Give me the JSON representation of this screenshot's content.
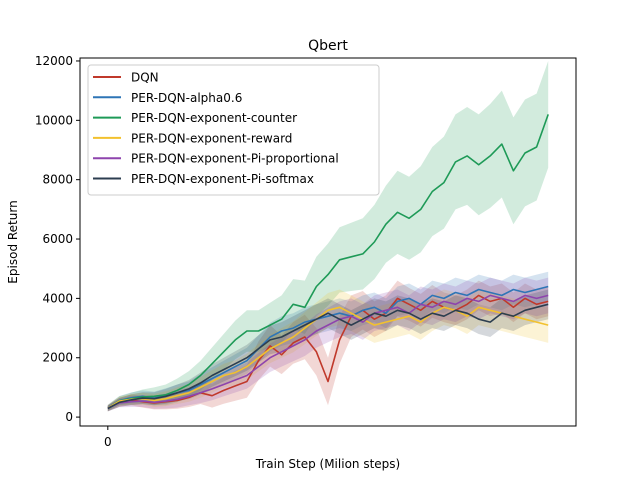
{
  "chart_data": {
    "type": "line",
    "title": "Qbert",
    "xlabel": "Train Step (Milion steps)",
    "ylabel": "Episod Return",
    "xlim": [
      -9.6,
      161.6
    ],
    "ylim": [
      -300,
      12100
    ],
    "x_ticks": [
      {
        "value": 0,
        "label": "0"
      }
    ],
    "y_ticks": [
      {
        "value": 0,
        "label": "0"
      },
      {
        "value": 2000,
        "label": "2000"
      },
      {
        "value": 4000,
        "label": "4000"
      },
      {
        "value": 6000,
        "label": "6000"
      },
      {
        "value": 8000,
        "label": "8000"
      },
      {
        "value": 10000,
        "label": "10000"
      },
      {
        "value": 12000,
        "label": "12000"
      }
    ],
    "grid": false,
    "legend_position": "top-left",
    "x": [
      0,
      4,
      8,
      12,
      16,
      20,
      24,
      28,
      32,
      36,
      40,
      44,
      48,
      52,
      56,
      60,
      64,
      68,
      72,
      76,
      80,
      84,
      88,
      92,
      96,
      100,
      104,
      108,
      112,
      116,
      120,
      124,
      128,
      132,
      136,
      140,
      144,
      148,
      152
    ],
    "series": [
      {
        "name": "DQN",
        "color": "#c0392b",
        "values": [
          300,
          500,
          580,
          520,
          480,
          520,
          560,
          660,
          820,
          720,
          900,
          1050,
          1200,
          1900,
          2400,
          2100,
          2500,
          2700,
          2200,
          1200,
          2600,
          3400,
          3600,
          3300,
          3500,
          4000,
          3800,
          3600,
          3900,
          3700,
          3600,
          3800,
          4100,
          3900,
          4000,
          3700,
          4000,
          3800,
          3900
        ],
        "spread": [
          100,
          150,
          180,
          200,
          220,
          260,
          280,
          320,
          380,
          400,
          450,
          500,
          550,
          650,
          700,
          650,
          700,
          750,
          800,
          800,
          800,
          700,
          650,
          600,
          600,
          600,
          550,
          550,
          550,
          500,
          500,
          500,
          500,
          500,
          500,
          500,
          500,
          500,
          500
        ]
      },
      {
        "name": "PER-DQN-alpha0.6",
        "color": "#2e75b6",
        "values": [
          320,
          560,
          650,
          700,
          640,
          720,
          820,
          900,
          1100,
          1300,
          1500,
          1700,
          1900,
          2300,
          2700,
          2900,
          3000,
          3200,
          3300,
          3400,
          3500,
          3400,
          3600,
          3700,
          3500,
          3900,
          4000,
          3800,
          4100,
          4000,
          4200,
          4100,
          4300,
          4200,
          4100,
          4300,
          4200,
          4300,
          4400
        ],
        "spread": [
          100,
          150,
          180,
          200,
          220,
          250,
          280,
          300,
          350,
          380,
          400,
          420,
          440,
          460,
          480,
          500,
          500,
          500,
          500,
          500,
          500,
          500,
          500,
          500,
          500,
          500,
          500,
          500,
          500,
          500,
          500,
          500,
          500,
          500,
          500,
          500,
          500,
          500,
          500
        ]
      },
      {
        "name": "PER-DQN-exponent-counter",
        "color": "#1e9a57",
        "values": [
          300,
          550,
          620,
          680,
          700,
          750,
          900,
          1100,
          1400,
          1800,
          2200,
          2600,
          2900,
          2900,
          3100,
          3300,
          3800,
          3700,
          4400,
          4800,
          5300,
          5400,
          5500,
          5900,
          6500,
          6900,
          6700,
          7000,
          7600,
          7900,
          8600,
          8800,
          8500,
          8800,
          9200,
          8300,
          8900,
          9100,
          10200
        ],
        "spread": [
          100,
          150,
          200,
          250,
          300,
          350,
          400,
          450,
          500,
          550,
          600,
          650,
          700,
          700,
          750,
          800,
          850,
          900,
          1000,
          1050,
          1100,
          1150,
          1200,
          1250,
          1300,
          1400,
          1400,
          1450,
          1500,
          1550,
          1600,
          1650,
          1700,
          1750,
          1800,
          1800,
          1800,
          1800,
          1800
        ]
      },
      {
        "name": "PER-DQN-exponent-reward",
        "color": "#f2c12e",
        "values": [
          310,
          540,
          600,
          620,
          560,
          620,
          720,
          820,
          1000,
          1200,
          1400,
          1500,
          1700,
          2000,
          2300,
          2500,
          2700,
          3000,
          3300,
          3600,
          3700,
          3500,
          3300,
          3100,
          3200,
          3300,
          3400,
          3200,
          3500,
          3700,
          3600,
          3400,
          3700,
          3600,
          3500,
          3400,
          3300,
          3200,
          3100
        ],
        "spread": [
          100,
          150,
          180,
          200,
          220,
          250,
          280,
          300,
          350,
          380,
          400,
          420,
          440,
          460,
          480,
          500,
          520,
          540,
          560,
          580,
          600,
          600,
          600,
          600,
          600,
          600,
          600,
          600,
          600,
          600,
          600,
          600,
          600,
          600,
          600,
          600,
          600,
          600,
          600
        ]
      },
      {
        "name": "PER-DQN-exponent-Pi-proportional",
        "color": "#8e44ad",
        "values": [
          300,
          480,
          520,
          540,
          500,
          540,
          600,
          700,
          820,
          950,
          1100,
          1250,
          1400,
          1700,
          2000,
          2200,
          2400,
          2600,
          2900,
          3100,
          3300,
          3400,
          3200,
          3500,
          3600,
          3700,
          3500,
          3800,
          3700,
          3900,
          3800,
          4000,
          3900,
          4100,
          4000,
          3900,
          4100,
          4000,
          4100
        ],
        "spread": [
          100,
          150,
          180,
          200,
          220,
          250,
          280,
          300,
          350,
          380,
          400,
          420,
          440,
          460,
          480,
          500,
          520,
          540,
          560,
          580,
          600,
          600,
          600,
          600,
          600,
          600,
          600,
          600,
          600,
          600,
          600,
          600,
          600,
          600,
          600,
          600,
          600,
          600,
          600
        ]
      },
      {
        "name": "PER-DQN-exponent-Pi-softmax",
        "color": "#2c3e50",
        "values": [
          290,
          500,
          580,
          640,
          620,
          700,
          820,
          950,
          1150,
          1400,
          1600,
          1800,
          2000,
          2300,
          2600,
          2700,
          2900,
          3100,
          3300,
          3500,
          3300,
          3100,
          3300,
          3500,
          3400,
          3600,
          3500,
          3300,
          3500,
          3400,
          3600,
          3500,
          3300,
          3200,
          3500,
          3400,
          3600,
          3700,
          3800
        ],
        "spread": [
          100,
          150,
          180,
          200,
          220,
          250,
          280,
          300,
          350,
          380,
          400,
          420,
          440,
          460,
          480,
          500,
          500,
          500,
          500,
          500,
          500,
          500,
          500,
          500,
          500,
          500,
          500,
          500,
          500,
          500,
          500,
          500,
          500,
          500,
          500,
          500,
          500,
          500,
          500
        ]
      }
    ]
  }
}
